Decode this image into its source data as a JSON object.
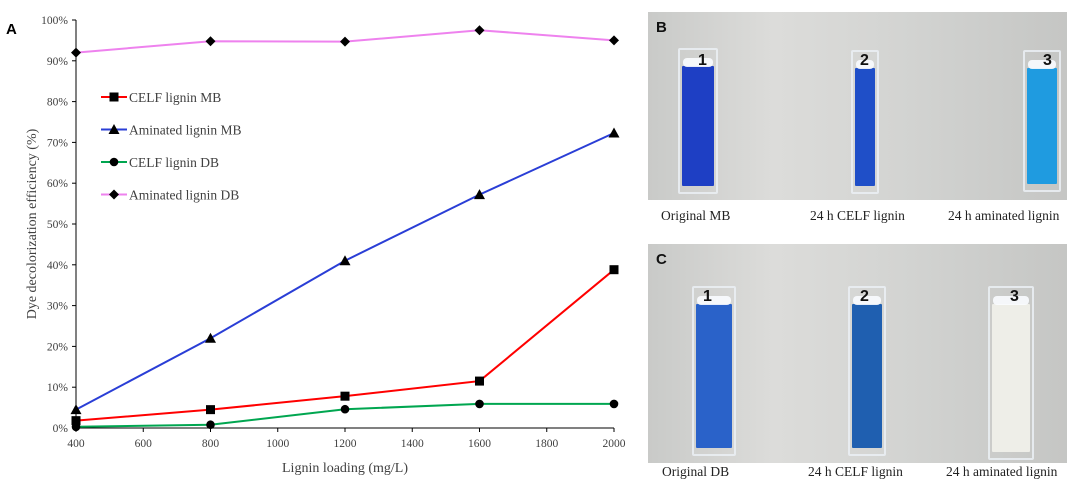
{
  "chart_data": {
    "type": "line",
    "panel_label": "A",
    "xlabel": "Lignin loading (mg/L)",
    "ylabel": "Dye decolorization efficiency (%)",
    "x": [
      400,
      800,
      1200,
      1600,
      2000
    ],
    "xlim": [
      400,
      2000
    ],
    "ylim": [
      0,
      100
    ],
    "x_ticks": [
      "400",
      "600",
      "800",
      "1000",
      "1200",
      "1400",
      "1600",
      "1800",
      "2000"
    ],
    "y_ticks": [
      "0%",
      "10%",
      "20%",
      "30%",
      "40%",
      "50%",
      "60%",
      "70%",
      "80%",
      "90%",
      "100%"
    ],
    "grid": false,
    "legend_position": "center-left",
    "series": [
      {
        "name": "CELF lignin MB",
        "color": "#ff0000",
        "marker": "square",
        "values": [
          1.8,
          4.5,
          7.8,
          11.5,
          38.8
        ]
      },
      {
        "name": "Aminated lignin MB",
        "color": "#2a3ed6",
        "marker": "triangle",
        "values": [
          4.5,
          22.0,
          41.0,
          57.2,
          72.3
        ]
      },
      {
        "name": "CELF lignin DB",
        "color": "#00a650",
        "marker": "circle",
        "values": [
          0.3,
          0.8,
          4.6,
          5.9,
          5.9
        ]
      },
      {
        "name": "Aminated lignin DB",
        "color": "#ee82ee",
        "marker": "diamond",
        "values": [
          92.0,
          94.8,
          94.7,
          97.5,
          95.0
        ]
      }
    ]
  },
  "photos": {
    "b": {
      "label": "B",
      "tubes": [
        "1",
        "2",
        "3"
      ],
      "captions": [
        "Original MB",
        "24 h CELF lignin",
        "24 h aminated lignin"
      ],
      "liquid_colors": [
        "#1e3fc4",
        "#1f4fc8",
        "#1f9be0"
      ]
    },
    "c": {
      "label": "C",
      "tubes": [
        "1",
        "2",
        "3"
      ],
      "captions": [
        "Original DB",
        "24 h CELF lignin",
        "24 h aminated lignin"
      ],
      "liquid_colors": [
        "#2a62c9",
        "#1f5fb0",
        "#eeeee8"
      ]
    }
  }
}
